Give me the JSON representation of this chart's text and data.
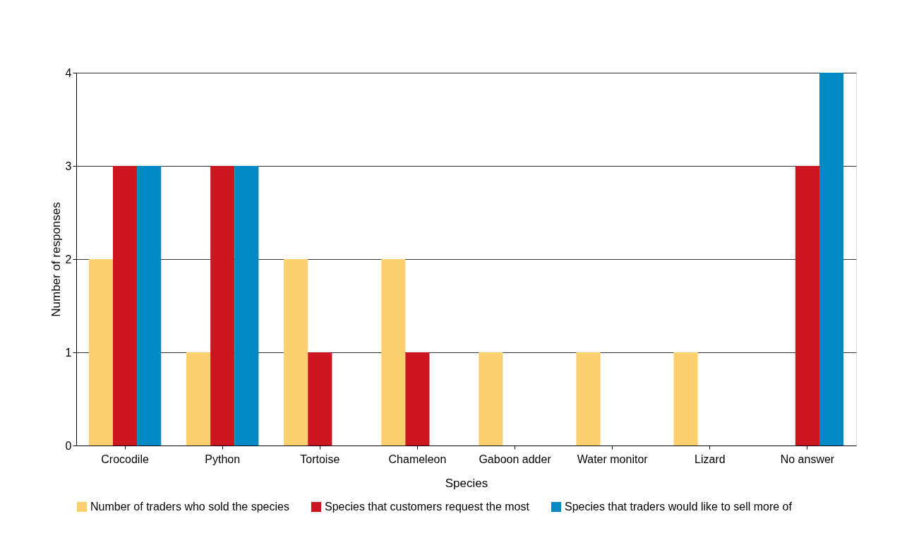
{
  "chart_data": {
    "type": "bar",
    "xlabel": "Species",
    "ylabel": "Number of responses",
    "categories": [
      "Crocodile",
      "Python",
      "Tortoise",
      "Chameleon",
      "Gaboon adder",
      "Water monitor",
      "Lizard",
      "No answer"
    ],
    "series": [
      {
        "name": "Number of traders who sold the species",
        "color": "#fdd06f",
        "values": [
          2,
          1,
          2,
          2,
          1,
          1,
          1,
          0
        ]
      },
      {
        "name": "Species that customers request the most",
        "color": "#cc1720",
        "values": [
          3,
          3,
          1,
          1,
          0,
          0,
          0,
          3
        ]
      },
      {
        "name": "Species that traders would like to sell more of",
        "color": "#0089c4",
        "values": [
          3,
          3,
          0,
          0,
          0,
          0,
          0,
          4
        ]
      }
    ],
    "ylim": [
      0,
      4
    ],
    "yticks": [
      0,
      1,
      2,
      3,
      4
    ],
    "grid": "y",
    "legend": "bottom"
  }
}
